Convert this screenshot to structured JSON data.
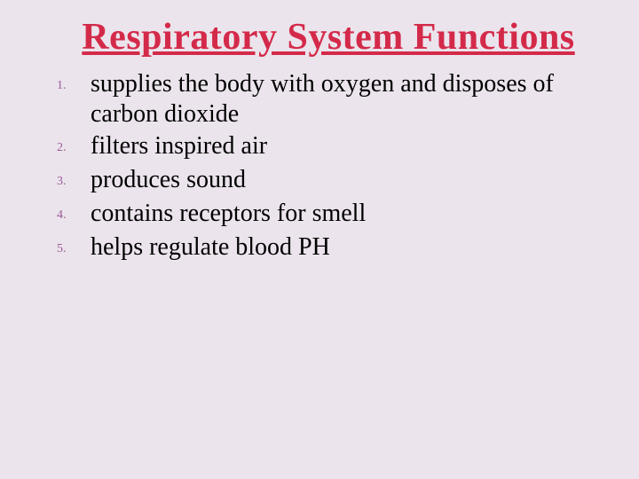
{
  "title": {
    "text": "Respiratory System Functions",
    "color": "#d42a4a",
    "fontsize": 42
  },
  "list": {
    "marker_color": "#9a5a9a",
    "text_color": "#000000",
    "item_fontsize": 28,
    "marker_fontsize": 14,
    "items": [
      {
        "marker": "1.",
        "text": "supplies the body with oxygen and disposes of carbon dioxide"
      },
      {
        "marker": "2.",
        "text": "filters inspired air"
      },
      {
        "marker": "3.",
        "text": "produces sound"
      },
      {
        "marker": "4.",
        "text": "contains receptors for smell"
      },
      {
        "marker": "5.",
        "text": "helps regulate blood PH"
      }
    ]
  },
  "background_color": "#ebe4ec"
}
